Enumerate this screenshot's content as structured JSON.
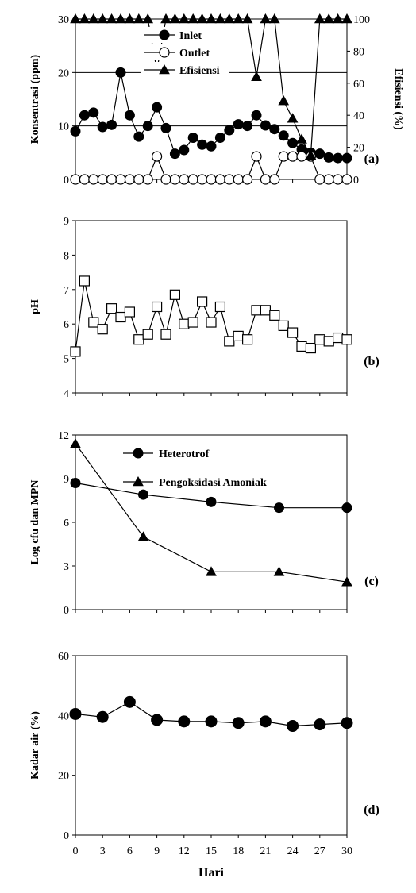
{
  "x_axis": {
    "label": "Hari",
    "ticks": [
      0,
      3,
      6,
      9,
      12,
      15,
      18,
      21,
      24,
      27,
      30
    ]
  },
  "chart_data": [
    {
      "type": "line",
      "panel_label": "(a)",
      "ylabel": "Konsentrasi (ppm)",
      "y2label": "Efisiensi (%)",
      "xlim": [
        0,
        30
      ],
      "ylim": [
        0,
        30
      ],
      "y_ticks": [
        0,
        10,
        20,
        30
      ],
      "y2lim": [
        0,
        100
      ],
      "y2_ticks": [
        0,
        20,
        40,
        60,
        80,
        100
      ],
      "hlines": [
        10,
        20,
        30
      ],
      "legend_position": "top-center",
      "series": [
        {
          "name": "Inlet",
          "marker": "filled-circle",
          "axis": "left",
          "x": [
            0,
            1,
            2,
            3,
            4,
            5,
            6,
            7,
            8,
            9,
            10,
            11,
            12,
            13,
            14,
            15,
            16,
            17,
            18,
            19,
            20,
            21,
            22,
            23,
            24,
            25,
            26,
            27,
            28,
            29,
            30
          ],
          "values": [
            9,
            12,
            12.5,
            9.8,
            10.2,
            20,
            12,
            8,
            10,
            13.5,
            9.6,
            4.8,
            5.5,
            7.8,
            6.5,
            6.2,
            7.8,
            9.2,
            10.3,
            10,
            12,
            10.1,
            9.4,
            8.2,
            6.8,
            5.6,
            5,
            4.8,
            4.1,
            4,
            4
          ]
        },
        {
          "name": "Outlet",
          "marker": "open-circle",
          "axis": "left",
          "x": [
            0,
            1,
            2,
            3,
            4,
            5,
            6,
            7,
            8,
            9,
            10,
            11,
            12,
            13,
            14,
            15,
            16,
            17,
            18,
            19,
            20,
            21,
            22,
            23,
            24,
            25,
            26,
            27,
            28,
            29,
            30
          ],
          "values": [
            0,
            0,
            0,
            0,
            0,
            0,
            0,
            0,
            0,
            4.3,
            0,
            0,
            0,
            0,
            0,
            0,
            0,
            0,
            0,
            0,
            4.3,
            0,
            0,
            4.3,
            4.3,
            4.3,
            4.3,
            0,
            0,
            0,
            0
          ]
        },
        {
          "name": "Efisiensi",
          "marker": "filled-triangle",
          "axis": "right",
          "x": [
            0,
            1,
            2,
            3,
            4,
            5,
            6,
            7,
            8,
            9,
            10,
            11,
            12,
            13,
            14,
            15,
            16,
            17,
            18,
            19,
            20,
            21,
            22,
            23,
            24,
            25,
            26,
            27,
            28,
            29,
            30
          ],
          "values": [
            100,
            100,
            100,
            100,
            100,
            100,
            100,
            100,
            100,
            68,
            100,
            100,
            100,
            100,
            100,
            100,
            100,
            100,
            100,
            100,
            64,
            100,
            100,
            49,
            38,
            25,
            15,
            100,
            100,
            100,
            100
          ]
        }
      ]
    },
    {
      "type": "line",
      "panel_label": "(b)",
      "ylabel": "pH",
      "xlim": [
        0,
        30
      ],
      "ylim": [
        4,
        9
      ],
      "y_ticks": [
        4,
        5,
        6,
        7,
        8,
        9
      ],
      "series": [
        {
          "marker": "open-square",
          "x": [
            0,
            1,
            2,
            3,
            4,
            5,
            6,
            7,
            8,
            9,
            10,
            11,
            12,
            13,
            14,
            15,
            16,
            17,
            18,
            19,
            20,
            21,
            22,
            23,
            24,
            25,
            26,
            27,
            28,
            29,
            30
          ],
          "values": [
            5.2,
            7.25,
            6.05,
            5.85,
            6.45,
            6.2,
            6.35,
            5.55,
            5.7,
            6.5,
            5.7,
            6.85,
            6.0,
            6.05,
            6.65,
            6.05,
            6.5,
            5.5,
            5.65,
            5.55,
            6.4,
            6.4,
            6.25,
            5.95,
            5.75,
            5.35,
            5.3,
            5.55,
            5.5,
            5.6,
            5.55
          ]
        }
      ]
    },
    {
      "type": "line",
      "panel_label": "(c)",
      "ylabel": "Log cfu dan MPN",
      "xlim": [
        0,
        30
      ],
      "ylim": [
        0,
        12
      ],
      "y_ticks": [
        0,
        3,
        6,
        9,
        12
      ],
      "legend_position": "top-right",
      "series": [
        {
          "name": "Heterotrof",
          "marker": "filled-circle",
          "x": [
            0,
            7.5,
            15,
            22.5,
            30
          ],
          "values": [
            8.7,
            7.9,
            7.4,
            7.0,
            7.0
          ]
        },
        {
          "name": "Pengoksidasi Amoniak",
          "marker": "filled-triangle",
          "x": [
            0,
            7.5,
            15,
            22.5,
            30
          ],
          "values": [
            11.4,
            5.0,
            2.6,
            2.6,
            1.9
          ]
        }
      ]
    },
    {
      "type": "line",
      "panel_label": "(d)",
      "ylabel": "Kadar air (%)",
      "xlim": [
        0,
        30
      ],
      "ylim": [
        0,
        60
      ],
      "y_ticks": [
        0,
        20,
        40,
        60
      ],
      "series": [
        {
          "marker": "filled-circle",
          "x": [
            0,
            3,
            6,
            9,
            12,
            15,
            18,
            21,
            24,
            27,
            30
          ],
          "values": [
            40.5,
            39.5,
            44.5,
            38.5,
            38.0,
            38.0,
            37.5,
            38.0,
            36.5,
            37.0,
            37.5
          ]
        }
      ]
    }
  ]
}
